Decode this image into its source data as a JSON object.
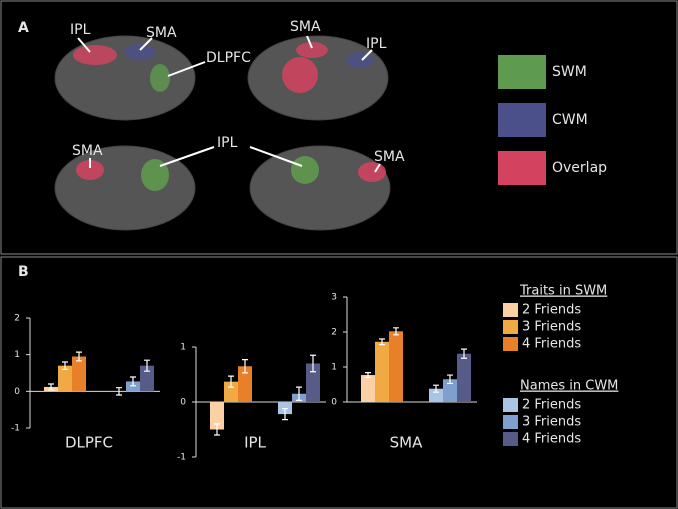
{
  "panel_a": {
    "label": "A",
    "regions": [
      "IPL",
      "SMA",
      "DLPFC",
      "SMA",
      "IPL",
      "SMA",
      "IPL",
      "SMA"
    ],
    "legend": [
      {
        "name": "SWM",
        "color": "#5e9a4f"
      },
      {
        "name": "CWM",
        "color": "#4b508b"
      },
      {
        "name": "Overlap",
        "color": "#d3435f"
      }
    ]
  },
  "panel_b": {
    "label": "B",
    "legend": {
      "groups": [
        {
          "title": "Traits in SWM",
          "entries": [
            {
              "name": "2 Friends",
              "color": "#fbd0a4"
            },
            {
              "name": "3 Friends",
              "color": "#f1a944"
            },
            {
              "name": "4 Friends",
              "color": "#e8802a"
            }
          ]
        },
        {
          "title": "Names in CWM",
          "entries": [
            {
              "name": "2 Friends",
              "color": "#a9c4e4"
            },
            {
              "name": "3 Friends",
              "color": "#7f9fcf"
            },
            {
              "name": "4 Friends",
              "color": "#565b87"
            }
          ]
        }
      ]
    }
  },
  "chart_data": [
    {
      "type": "bar",
      "title": "DLPFC",
      "ylim": [
        -1,
        2
      ],
      "yticks": [
        -1,
        0,
        1,
        2
      ],
      "series": [
        {
          "values": [
            0.12,
            0.7,
            0.95
          ],
          "errors": [
            0.08,
            0.1,
            0.12
          ]
        },
        {
          "values": [
            0,
            0.27,
            0.7
          ],
          "errors": [
            0.1,
            0.12,
            0.15
          ]
        }
      ]
    },
    {
      "type": "bar",
      "title": "IPL",
      "ylim": [
        -1,
        1
      ],
      "yticks": [
        -1,
        0,
        1
      ],
      "series": [
        {
          "values": [
            -0.5,
            0.37,
            0.65
          ],
          "errors": [
            0.1,
            0.1,
            0.12
          ]
        },
        {
          "values": [
            -0.22,
            0.15,
            0.7
          ],
          "errors": [
            0.1,
            0.12,
            0.15
          ]
        }
      ]
    },
    {
      "type": "bar",
      "title": "SMA",
      "ylim": [
        0,
        3
      ],
      "yticks": [
        0,
        1,
        2,
        3
      ],
      "series": [
        {
          "values": [
            0.77,
            1.72,
            2.02
          ],
          "errors": [
            0.07,
            0.08,
            0.1
          ]
        },
        {
          "values": [
            0.38,
            0.65,
            1.38
          ],
          "errors": [
            0.1,
            0.12,
            0.13
          ]
        }
      ]
    }
  ]
}
